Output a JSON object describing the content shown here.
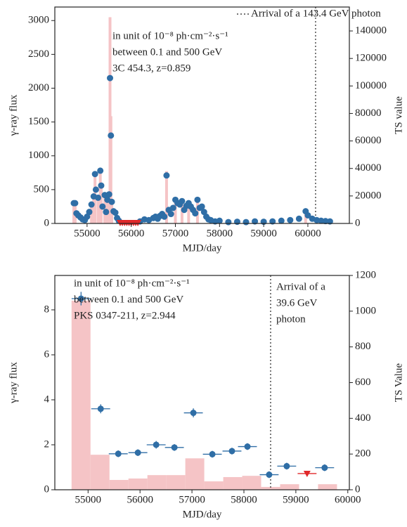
{
  "chart_data": [
    {
      "type": "scatter",
      "xlabel": "MJD/day",
      "ylabel": "γ-ray flux",
      "y2label": "TS value",
      "xlim": [
        54270,
        60940
      ],
      "xticks": [
        55000,
        56000,
        57000,
        58000,
        59000,
        60000
      ],
      "ylim": [
        0,
        3200
      ],
      "yticks": [
        0,
        500,
        1000,
        1500,
        2000,
        2500,
        3000
      ],
      "y2lim": [
        0,
        157400
      ],
      "y2ticks": [
        0,
        20000,
        40000,
        60000,
        80000,
        100000,
        120000,
        140000
      ],
      "annotations": [
        "in unit of 10⁻⁸ ph·cm⁻²·s⁻¹",
        "between 0.1 and 500 GeV",
        "3C 454.3, z=0.859"
      ],
      "vline": {
        "x": 60175,
        "label": [
          "Arrival of a 143.4 GeV photon"
        ]
      },
      "ts": {
        "axis": "y2",
        "color": "#f5c4c6",
        "x": [
          54700,
          54730,
          55100,
          55150,
          55180,
          55250,
          55300,
          55320,
          55400,
          55460,
          55500,
          55520,
          55540,
          55560,
          56800,
          57000,
          57150,
          57300,
          57500,
          59950
        ],
        "values": [
          14000,
          13000,
          12000,
          18000,
          34000,
          20000,
          40000,
          27000,
          20000,
          16000,
          20000,
          150000,
          78000,
          14000,
          38000,
          16000,
          15000,
          14000,
          16000,
          8000
        ]
      },
      "flux": {
        "color": "#2f6ea6",
        "x": [
          54700,
          54730,
          54760,
          54800,
          54850,
          54900,
          54950,
          55000,
          55050,
          55100,
          55150,
          55180,
          55200,
          55250,
          55300,
          55320,
          55350,
          55400,
          55430,
          55460,
          55500,
          55520,
          55540,
          55560,
          55600,
          55640,
          55680,
          55720,
          56200,
          56300,
          56400,
          56500,
          56550,
          56600,
          56650,
          56700,
          56750,
          56800,
          56850,
          56900,
          56950,
          57000,
          57050,
          57100,
          57150,
          57200,
          57250,
          57300,
          57350,
          57400,
          57450,
          57500,
          57550,
          57600,
          57650,
          57700,
          57750,
          57800,
          57900,
          58000,
          58200,
          58400,
          58600,
          58800,
          59000,
          59200,
          59400,
          59600,
          59800,
          59950,
          60000,
          60100,
          60200,
          60300,
          60400,
          60500
        ],
        "values": [
          300,
          300,
          150,
          120,
          90,
          60,
          50,
          100,
          170,
          280,
          400,
          730,
          500,
          380,
          780,
          560,
          250,
          420,
          170,
          350,
          430,
          2150,
          1300,
          320,
          180,
          160,
          80,
          40,
          30,
          60,
          50,
          80,
          100,
          70,
          110,
          140,
          100,
          710,
          200,
          140,
          230,
          350,
          300,
          280,
          330,
          200,
          260,
          300,
          250,
          200,
          150,
          350,
          230,
          250,
          170,
          100,
          60,
          50,
          30,
          40,
          20,
          25,
          20,
          30,
          25,
          30,
          40,
          50,
          70,
          180,
          120,
          70,
          50,
          40,
          35,
          30
        ]
      },
      "upper_limits": {
        "color": "#e0282a",
        "x": [
          55750,
          55800,
          55850,
          55900,
          55950,
          56000,
          56050,
          56100,
          56150
        ],
        "values": [
          10,
          10,
          10,
          10,
          10,
          10,
          10,
          10,
          10
        ]
      }
    },
    {
      "type": "scatter",
      "xlabel": "MJD/day",
      "ylabel": "γ-ray flux",
      "y2label": "TS Value",
      "xlim": [
        54360,
        60030
      ],
      "xticks": [
        55000,
        56000,
        57000,
        58000,
        59000,
        60000
      ],
      "ylim": [
        0,
        9.53
      ],
      "yticks": [
        0,
        2,
        4,
        6,
        8
      ],
      "y2lim": [
        0,
        1200
      ],
      "y2ticks": [
        0,
        200,
        400,
        600,
        800,
        1000,
        1200
      ],
      "annotations": [
        "in unit of 10⁻⁸ ph·cm⁻²·s⁻¹",
        "between 0.1 and 500 GeV",
        "PKS 0347-211, z=2.944"
      ],
      "vline": {
        "x": 58514,
        "label": [
          "Arrival of a",
          "39.6 GeV",
          "photon"
        ]
      },
      "ts": {
        "axis": "y2",
        "color": "#f5c4c6",
        "bins": [
          54682,
          55047,
          55412,
          55777,
          56142,
          56507,
          56872,
          57237,
          57602,
          57967,
          58332,
          58697,
          59062,
          59427,
          59792
        ],
        "values": [
          1059,
          196,
          55,
          63,
          82,
          82,
          176,
          47,
          71,
          78,
          16,
          31,
          0,
          31
        ]
      },
      "flux": {
        "color": "#2f6ea6",
        "x": [
          54865,
          55243,
          55581,
          55959,
          56311,
          56662,
          57027,
          57392,
          57770,
          58068,
          58486,
          58824,
          59554
        ],
        "xerr": [
          182,
          182,
          182,
          182,
          182,
          182,
          182,
          182,
          182,
          182,
          182,
          182,
          182
        ],
        "values": [
          8.5,
          3.6,
          1.6,
          1.65,
          2.0,
          1.88,
          3.42,
          1.58,
          1.72,
          1.92,
          0.67,
          1.05,
          0.98
        ],
        "yerr": [
          0.3,
          0.2,
          0.15,
          0.15,
          0.17,
          0.15,
          0.2,
          0.15,
          0.15,
          0.15,
          0.15,
          0.15,
          0.15
        ]
      },
      "upper_limits": {
        "color": "#e0282a",
        "x": [
          59216
        ],
        "xerr": [
          182
        ],
        "values": [
          0.72
        ]
      }
    }
  ]
}
